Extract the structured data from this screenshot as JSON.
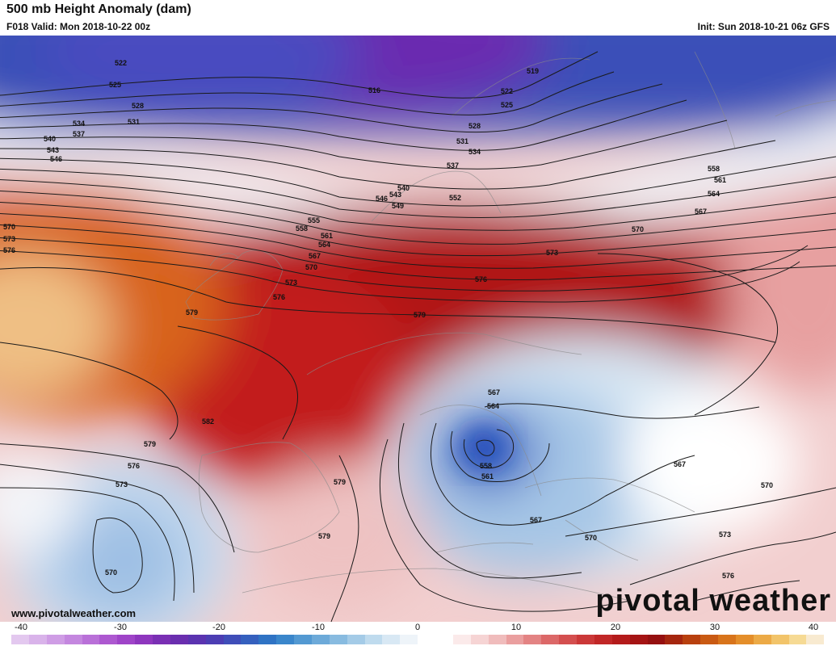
{
  "header": {
    "title": "500 mb Height Anomaly (dam)",
    "valid": "F018 Valid: Mon 2018-10-22 00z",
    "init": "Init: Sun 2018-10-21 06z GFS"
  },
  "map": {
    "contour_labels": [
      {
        "text": "522"
      },
      {
        "text": "525"
      },
      {
        "text": "528"
      },
      {
        "text": "531"
      },
      {
        "text": "534"
      },
      {
        "text": "537"
      },
      {
        "text": "540"
      },
      {
        "text": "543"
      },
      {
        "text": "546"
      },
      {
        "text": "516"
      },
      {
        "text": "519"
      },
      {
        "text": "522"
      },
      {
        "text": "525"
      },
      {
        "text": "528"
      },
      {
        "text": "531"
      },
      {
        "text": "534"
      },
      {
        "text": "537"
      },
      {
        "text": "540"
      },
      {
        "text": "543"
      },
      {
        "text": "546"
      },
      {
        "text": "549"
      },
      {
        "text": "552"
      },
      {
        "text": "555"
      },
      {
        "text": "558"
      },
      {
        "text": "561"
      },
      {
        "text": "564"
      },
      {
        "text": "567"
      },
      {
        "text": "570"
      },
      {
        "text": "573"
      },
      {
        "text": "576"
      },
      {
        "text": "579"
      },
      {
        "text": "579"
      },
      {
        "text": "570"
      },
      {
        "text": "573"
      },
      {
        "text": "576"
      },
      {
        "text": "558"
      },
      {
        "text": "561"
      },
      {
        "text": "564"
      },
      {
        "text": "567"
      },
      {
        "text": "570"
      },
      {
        "text": "573"
      },
      {
        "text": "576"
      },
      {
        "text": "582"
      },
      {
        "text": "579"
      },
      {
        "text": "576"
      },
      {
        "text": "573"
      },
      {
        "text": "570"
      },
      {
        "text": "579"
      },
      {
        "text": "579"
      },
      {
        "text": "567"
      },
      {
        "text": "564"
      },
      {
        "text": "558"
      },
      {
        "text": "561"
      },
      {
        "text": "567"
      },
      {
        "text": "570"
      },
      {
        "text": "567"
      },
      {
        "text": "570"
      },
      {
        "text": "573"
      },
      {
        "text": "576"
      }
    ]
  },
  "colorbar": {
    "labels": [
      "-40",
      "-30",
      "-20",
      "-10",
      "0",
      "10",
      "20",
      "30",
      "40"
    ],
    "colors": [
      "#e3c8ef",
      "#d9b3ea",
      "#cf9de5",
      "#c487df",
      "#b970d8",
      "#ad58d0",
      "#9f44c8",
      "#8e36be",
      "#7a2fb4",
      "#6a2eaf",
      "#5b33b0",
      "#4c3db3",
      "#3f4db8",
      "#3560be",
      "#2f73c4",
      "#3a86cb",
      "#5399d2",
      "#6daad9",
      "#88bbe0",
      "#a4cbe7",
      "#bfdbee",
      "#d8e8f4",
      "#eef4f9",
      "#ffffff",
      "#ffffff",
      "#fbeaea",
      "#f6d4d4",
      "#f0bcbc",
      "#ea9f9f",
      "#e38383",
      "#dc6868",
      "#d44f4f",
      "#cb3838",
      "#c12727",
      "#b41b1b",
      "#a51414",
      "#951010",
      "#a5260f",
      "#b8400f",
      "#c95a13",
      "#d8741b",
      "#e48e2a",
      "#ecaa46",
      "#f2c46a",
      "#f6da94",
      "#f8ead0"
    ]
  },
  "watermark": {
    "url": "www.pivotalweather.com",
    "brand": "pivotal weather"
  }
}
